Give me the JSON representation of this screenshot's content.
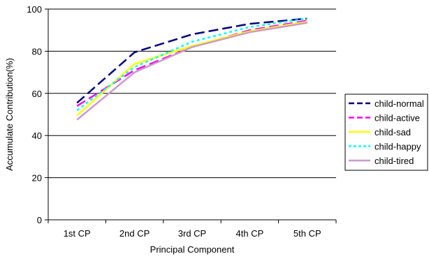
{
  "chart_data": {
    "type": "line",
    "title": "",
    "xlabel": "Principal Component",
    "ylabel": "Accumulate Contribution(%)",
    "categories": [
      "1st CP",
      "2nd CP",
      "3rd CP",
      "4th CP",
      "5th CP"
    ],
    "ylim": [
      0,
      100
    ],
    "yticks": [
      "0",
      "20",
      "40",
      "60",
      "80",
      "100"
    ],
    "grid": "horizontal",
    "legend_position": "right",
    "series": [
      {
        "name": "child-normal",
        "values": [
          55.5,
          79.5,
          88.0,
          93.0,
          95.5
        ],
        "color": "#000080",
        "dash": "long-dash"
      },
      {
        "name": "child-active",
        "values": [
          54.0,
          71.0,
          82.0,
          90.0,
          94.5
        ],
        "color": "#ff00ff",
        "dash": "long-dash"
      },
      {
        "name": "child-sad",
        "values": [
          49.5,
          74.0,
          82.5,
          89.5,
          94.0
        ],
        "color": "#ffff00",
        "dash": "solid"
      },
      {
        "name": "child-happy",
        "values": [
          52.0,
          72.5,
          84.5,
          91.5,
          95.5
        ],
        "color": "#00ffff",
        "dash": "dotted"
      },
      {
        "name": "child-tired",
        "values": [
          47.5,
          70.0,
          82.0,
          89.0,
          93.5
        ],
        "color": "#cc99cc",
        "dash": "solid"
      }
    ]
  }
}
